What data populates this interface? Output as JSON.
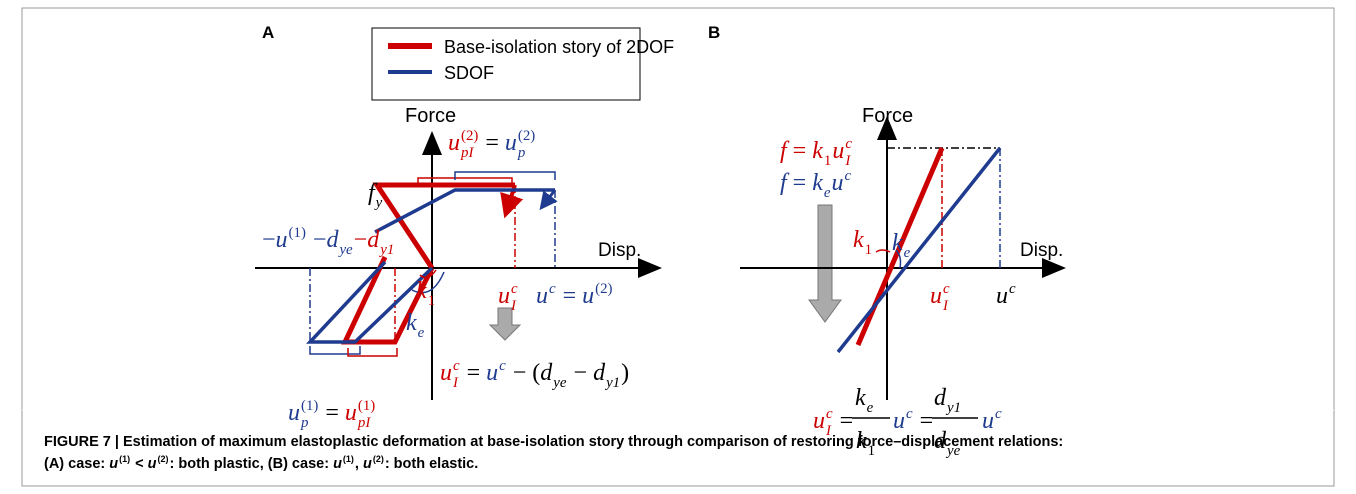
{
  "panel_a": {
    "label": "A",
    "y_axis": "Force",
    "x_axis": "Disp.",
    "math": [
      {
        "color": "#000000",
        "tokens": [
          {
            "base": "f",
            "sub": "y"
          }
        ]
      },
      {
        "color": "#1f3b8f",
        "tokens": [
          {
            "base": "−"
          },
          {
            "base": "u",
            "sup": "(1)"
          },
          {
            "base": " −"
          },
          {
            "base": "d",
            "sub": "ye"
          },
          {
            "base": "−",
            "color": "#cc0000"
          },
          {
            "base": "d",
            "sub": "y1",
            "color": "#cc0000"
          }
        ]
      },
      {
        "color": "#000000",
        "tokens": [
          {
            "base": "u",
            "sub": "pI",
            "sup": "(2)",
            "color": "#cc0000"
          },
          {
            "base": " = "
          },
          {
            "base": "u",
            "sub": "p",
            "sup": "(2)",
            "color": "#1f3b8f"
          }
        ]
      },
      {
        "color": "#cc0000",
        "tokens": [
          {
            "base": "k",
            "sub": "1"
          }
        ]
      },
      {
        "color": "#1f3b8f",
        "tokens": [
          {
            "base": "k",
            "sub": "e"
          }
        ]
      },
      {
        "color": "#cc0000",
        "tokens": [
          {
            "base": "u",
            "sub": "I",
            "sup": "c"
          }
        ]
      },
      {
        "color": "#1f3b8f",
        "tokens": [
          {
            "base": "u",
            "sup": "c"
          },
          {
            "base": " = "
          },
          {
            "base": "u",
            "sup": "(2)"
          }
        ]
      },
      {
        "color": "#000000",
        "tokens": [
          {
            "base": "u",
            "sub": "p",
            "sup": "(1)",
            "color": "#1f3b8f"
          },
          {
            "base": " = "
          },
          {
            "base": "u",
            "sub": "pI",
            "sup": "(1)",
            "color": "#cc0000"
          }
        ]
      },
      {
        "color": "#000000",
        "tokens": [
          {
            "base": "u",
            "sub": "I",
            "sup": "c",
            "color": "#cc0000"
          },
          {
            "base": " = "
          },
          {
            "base": "u",
            "sup": "c",
            "color": "#1f3b8f"
          },
          {
            "base": " − ("
          },
          {
            "base": "d",
            "sub": "ye"
          },
          {
            "base": " − "
          },
          {
            "base": "d",
            "sub": "y1"
          },
          {
            "base": ")"
          }
        ]
      }
    ]
  },
  "panel_b": {
    "label": "B",
    "y_axis": "Force",
    "x_axis": "Disp.",
    "math": [
      {
        "color": "#cc0000",
        "tokens": [
          {
            "base": "f"
          },
          {
            "base": " = "
          },
          {
            "base": "k",
            "sub": "1"
          },
          {
            "base": "u",
            "sub": "I",
            "sup": "c"
          }
        ]
      },
      {
        "color": "#1f3b8f",
        "tokens": [
          {
            "base": "f"
          },
          {
            "base": " = "
          },
          {
            "base": "k",
            "sub": "e"
          },
          {
            "base": "u",
            "sup": "c"
          }
        ]
      },
      {
        "color": "#cc0000",
        "tokens": [
          {
            "base": "k",
            "sub": "1"
          }
        ]
      },
      {
        "color": "#1f3b8f",
        "tokens": [
          {
            "base": "k",
            "sub": "e"
          }
        ]
      },
      {
        "color": "#cc0000",
        "tokens": [
          {
            "base": "u",
            "sub": "I",
            "sup": "c"
          }
        ]
      },
      {
        "color": "#000000",
        "tokens": [
          {
            "base": "u",
            "sup": "c"
          }
        ]
      },
      {
        "color": "#000000",
        "tokens": [
          {
            "base": "u",
            "sub": "I",
            "sup": "c",
            "color": "#cc0000"
          },
          {
            "base": " ="
          }
        ]
      },
      {
        "color": "#000000",
        "tokens": [
          {
            "base": "k",
            "sub": "e"
          }
        ]
      },
      {
        "color": "#000000",
        "tokens": [
          {
            "base": "k",
            "sub": "1"
          }
        ]
      },
      {
        "color": "#000000",
        "tokens": [
          {
            "base": "u",
            "sup": "c",
            "color": "#1f3b8f"
          },
          {
            "base": " ="
          }
        ]
      },
      {
        "color": "#000000",
        "tokens": [
          {
            "base": "d",
            "sub": "y1"
          }
        ]
      },
      {
        "color": "#000000",
        "tokens": [
          {
            "base": "d",
            "sub": "ye"
          }
        ]
      },
      {
        "color": "#1f3b8f",
        "tokens": [
          {
            "base": "u",
            "sup": "c"
          }
        ]
      }
    ]
  },
  "legend": [
    {
      "name": "Base-isolation story of 2DOF",
      "color": "#cc0000"
    },
    {
      "name": "SDOF",
      "color": "#1f3b8f"
    }
  ],
  "caption": {
    "line1": "FIGURE 7 | Estimation of maximum elastoplastic deformation at base-isolation story through comparison of restoring force–displacement relations:",
    "line2": [
      {
        "base": "(A) case: "
      },
      {
        "base": "u",
        "sup": "(1)"
      },
      {
        "base": " < "
      },
      {
        "base": "u",
        "sup": "(2)"
      },
      {
        "base": ": both plastic, (B) case: "
      },
      {
        "base": "u",
        "sup": "(1)"
      },
      {
        "base": ", "
      },
      {
        "base": "u",
        "sup": "(2)"
      },
      {
        "base": ": both elastic."
      }
    ]
  }
}
